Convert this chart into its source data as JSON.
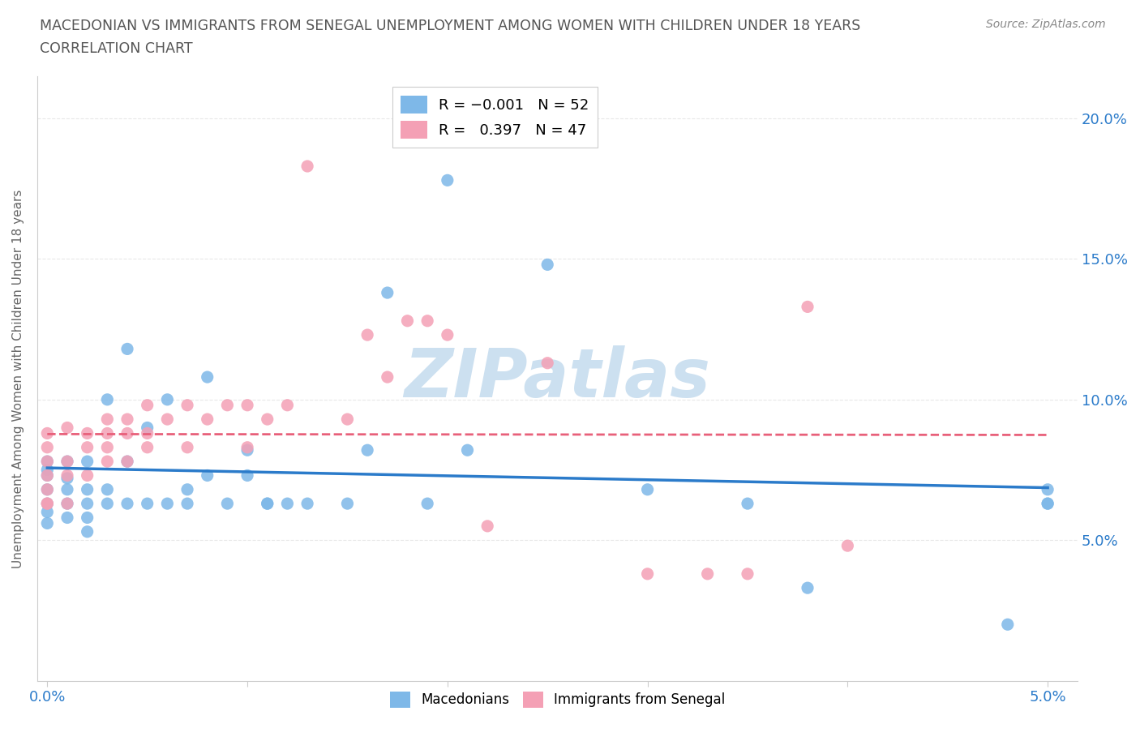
{
  "title_line1": "MACEDONIAN VS IMMIGRANTS FROM SENEGAL UNEMPLOYMENT AMONG WOMEN WITH CHILDREN UNDER 18 YEARS",
  "title_line2": "CORRELATION CHART",
  "source_text": "Source: ZipAtlas.com",
  "ylabel": "Unemployment Among Women with Children Under 18 years",
  "macedonian_color": "#7eb8e8",
  "senegal_color": "#f4a0b5",
  "macedonian_line_color": "#2b7bca",
  "senegal_line_color": "#e8607a",
  "watermark_color": "#cce0f0",
  "background_color": "#ffffff",
  "grid_color": "#e8e8e8",
  "tick_color": "#2b7bca",
  "label_color": "#666666",
  "macedonian_scatter_x": [
    0.0,
    0.0,
    0.0,
    0.0,
    0.0,
    0.0,
    0.0,
    0.001,
    0.001,
    0.001,
    0.001,
    0.001,
    0.002,
    0.002,
    0.002,
    0.002,
    0.002,
    0.003,
    0.003,
    0.003,
    0.004,
    0.004,
    0.004,
    0.005,
    0.005,
    0.006,
    0.006,
    0.007,
    0.007,
    0.008,
    0.008,
    0.009,
    0.01,
    0.01,
    0.011,
    0.011,
    0.012,
    0.013,
    0.015,
    0.016,
    0.017,
    0.019,
    0.02,
    0.021,
    0.025,
    0.03,
    0.035,
    0.038,
    0.048,
    0.05,
    0.05,
    0.05
  ],
  "macedonian_scatter_y": [
    0.068,
    0.073,
    0.078,
    0.063,
    0.056,
    0.06,
    0.075,
    0.063,
    0.072,
    0.078,
    0.068,
    0.058,
    0.063,
    0.068,
    0.058,
    0.053,
    0.078,
    0.063,
    0.068,
    0.1,
    0.063,
    0.078,
    0.118,
    0.063,
    0.09,
    0.063,
    0.1,
    0.063,
    0.068,
    0.108,
    0.073,
    0.063,
    0.082,
    0.073,
    0.063,
    0.063,
    0.063,
    0.063,
    0.063,
    0.082,
    0.138,
    0.063,
    0.178,
    0.082,
    0.148,
    0.068,
    0.063,
    0.033,
    0.02,
    0.063,
    0.068,
    0.063
  ],
  "senegal_scatter_x": [
    0.0,
    0.0,
    0.0,
    0.0,
    0.0,
    0.0,
    0.0,
    0.001,
    0.001,
    0.001,
    0.001,
    0.002,
    0.002,
    0.002,
    0.003,
    0.003,
    0.003,
    0.003,
    0.004,
    0.004,
    0.004,
    0.005,
    0.005,
    0.005,
    0.006,
    0.007,
    0.007,
    0.008,
    0.009,
    0.01,
    0.01,
    0.011,
    0.012,
    0.013,
    0.015,
    0.016,
    0.017,
    0.018,
    0.019,
    0.02,
    0.022,
    0.025,
    0.03,
    0.033,
    0.035,
    0.038,
    0.04
  ],
  "senegal_scatter_y": [
    0.063,
    0.068,
    0.088,
    0.078,
    0.073,
    0.083,
    0.063,
    0.063,
    0.073,
    0.078,
    0.09,
    0.073,
    0.083,
    0.088,
    0.078,
    0.083,
    0.088,
    0.093,
    0.088,
    0.078,
    0.093,
    0.083,
    0.088,
    0.098,
    0.093,
    0.083,
    0.098,
    0.093,
    0.098,
    0.083,
    0.098,
    0.093,
    0.098,
    0.183,
    0.093,
    0.123,
    0.108,
    0.128,
    0.128,
    0.123,
    0.055,
    0.113,
    0.038,
    0.038,
    0.038,
    0.133,
    0.048
  ]
}
